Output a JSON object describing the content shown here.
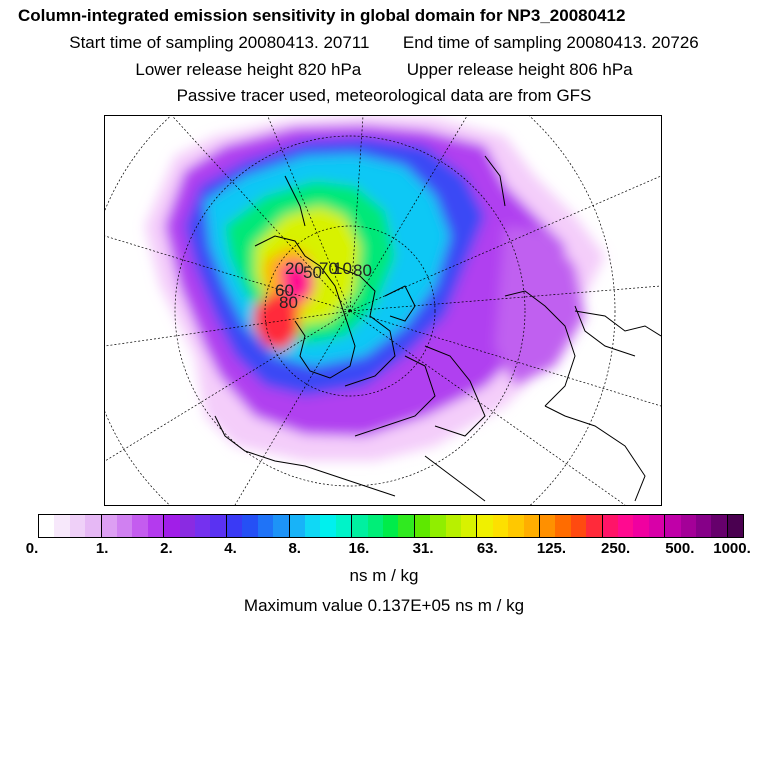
{
  "header": {
    "title": "Column-integrated emission sensitivity in global domain for NP3_20080412",
    "start_time": "Start time of sampling 20080413. 20711",
    "end_time": "End time of sampling 20080413. 20726",
    "lower_height": "Lower release height  820 hPa",
    "upper_height": "Upper release height  806 hPa",
    "note": "Passive tracer used, meteorological data are from GFS"
  },
  "map": {
    "release_labels": [
      "20",
      "50",
      "70",
      "10",
      "80",
      "60",
      "80"
    ]
  },
  "colorbar": {
    "colors": [
      "#ffffff",
      "#f7e8fb",
      "#efd0f8",
      "#e6b8f5",
      "#dd9ff3",
      "#d080f1",
      "#c45cef",
      "#b43aee",
      "#a11ee8",
      "#8a2be2",
      "#7531ef",
      "#5a32f2",
      "#3a3af5",
      "#2550f5",
      "#1f73f7",
      "#1d93f7",
      "#18b3f8",
      "#10d8f5",
      "#00f0ee",
      "#00f3c8",
      "#00f0a0",
      "#00ee78",
      "#00ec4a",
      "#30ea20",
      "#5ee800",
      "#90ee00",
      "#b8f000",
      "#d8f200",
      "#f0f000",
      "#fde000",
      "#ffc800",
      "#ffae00",
      "#ff9000",
      "#ff6c00",
      "#ff4a10",
      "#ff2a3a",
      "#ff1468",
      "#ff0a90",
      "#f000a0",
      "#d800a8",
      "#c000a8",
      "#a40098",
      "#860088",
      "#66006c",
      "#4a0050"
    ],
    "tick_labels": [
      "0.",
      "1.",
      "2.",
      "4.",
      "8.",
      "16.",
      "31.",
      "63.",
      "125.",
      "250.",
      "500.",
      "1000."
    ],
    "units": "ns m / kg",
    "max_value": "Maximum value  0.137E+05 ns m / kg"
  }
}
